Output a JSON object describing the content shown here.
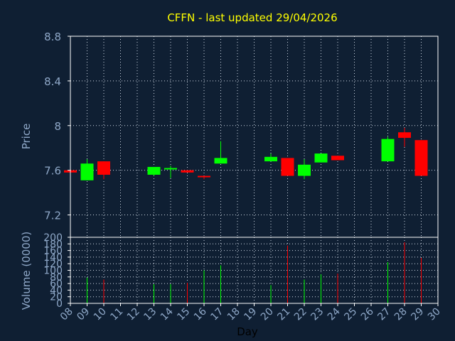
{
  "title": "CFFN - last updated 29/04/2026",
  "colors": {
    "background": "#0f1f33",
    "plot_bg": "#0f1f33",
    "frame": "#ffffff",
    "grid": "#cfd8e4",
    "title": "#ffff00",
    "axis_text": "#8fa8c8",
    "up": "#00ff00",
    "down": "#ff0000"
  },
  "chart_data": [
    {
      "type": "candlestick",
      "ylabel": "Price",
      "ylim": [
        7.0,
        8.8
      ],
      "yticks": [
        7.2,
        7.6,
        8,
        8.4,
        8.8
      ],
      "ytick_labels": [
        "7.2",
        "7.6",
        "8",
        "8.4",
        "8.8"
      ],
      "grid": true,
      "candles": [
        {
          "day": 8,
          "open": 7.6,
          "close": 7.58,
          "high": 7.6,
          "low": 7.58
        },
        {
          "day": 9,
          "open": 7.51,
          "close": 7.66,
          "high": 7.7,
          "low": 7.51
        },
        {
          "day": 10,
          "open": 7.68,
          "close": 7.56,
          "high": 7.68,
          "low": 7.52
        },
        {
          "day": 13,
          "open": 7.56,
          "close": 7.63,
          "high": 7.63,
          "low": 7.55
        },
        {
          "day": 14,
          "open": 7.61,
          "close": 7.62,
          "high": 7.64,
          "low": 7.53
        },
        {
          "day": 15,
          "open": 7.6,
          "close": 7.58,
          "high": 7.6,
          "low": 7.58
        },
        {
          "day": 16,
          "open": 7.55,
          "close": 7.54,
          "high": 7.55,
          "low": 7.52
        },
        {
          "day": 17,
          "open": 7.66,
          "close": 7.71,
          "high": 7.86,
          "low": 7.66
        },
        {
          "day": 20,
          "open": 7.68,
          "close": 7.72,
          "high": 7.75,
          "low": 7.68
        },
        {
          "day": 21,
          "open": 7.71,
          "close": 7.55,
          "high": 7.71,
          "low": 7.55
        },
        {
          "day": 22,
          "open": 7.55,
          "close": 7.65,
          "high": 7.7,
          "low": 7.52
        },
        {
          "day": 23,
          "open": 7.67,
          "close": 7.75,
          "high": 7.75,
          "low": 7.67
        },
        {
          "day": 24,
          "open": 7.73,
          "close": 7.69,
          "high": 7.73,
          "low": 7.69
        },
        {
          "day": 27,
          "open": 7.68,
          "close": 7.88,
          "high": 7.9,
          "low": 7.68
        },
        {
          "day": 28,
          "open": 7.94,
          "close": 7.89,
          "high": 7.98,
          "low": 7.81
        },
        {
          "day": 29,
          "open": 7.87,
          "close": 7.55,
          "high": 7.87,
          "low": 7.55
        }
      ]
    },
    {
      "type": "bar",
      "ylabel": "Volume (0000)",
      "xlabel": "Day",
      "ylim": [
        0,
        200
      ],
      "yticks": [
        0,
        20,
        40,
        60,
        80,
        100,
        120,
        140,
        160,
        180,
        200
      ],
      "ytick_labels": [
        "0",
        "20",
        "40",
        "60",
        "80",
        "100",
        "120",
        "140",
        "160",
        "180",
        "200"
      ],
      "xlim": [
        8,
        30
      ],
      "xticks": [
        "08",
        "09",
        "10",
        "11",
        "12",
        "13",
        "14",
        "15",
        "16",
        "17",
        "18",
        "19",
        "20",
        "21",
        "22",
        "23",
        "24",
        "25",
        "26",
        "27",
        "28",
        "29",
        "30"
      ],
      "bars": [
        {
          "day": 9,
          "value": 78,
          "color": "up"
        },
        {
          "day": 10,
          "value": 72,
          "color": "down"
        },
        {
          "day": 13,
          "value": 58,
          "color": "up"
        },
        {
          "day": 14,
          "value": 58,
          "color": "up"
        },
        {
          "day": 15,
          "value": 62,
          "color": "down"
        },
        {
          "day": 16,
          "value": 100,
          "color": "up"
        },
        {
          "day": 17,
          "value": 115,
          "color": "up"
        },
        {
          "day": 20,
          "value": 55,
          "color": "up"
        },
        {
          "day": 21,
          "value": 175,
          "color": "down"
        },
        {
          "day": 22,
          "value": 72,
          "color": "up"
        },
        {
          "day": 23,
          "value": 88,
          "color": "up"
        },
        {
          "day": 24,
          "value": 90,
          "color": "down"
        },
        {
          "day": 27,
          "value": 125,
          "color": "up"
        },
        {
          "day": 28,
          "value": 185,
          "color": "down"
        },
        {
          "day": 29,
          "value": 138,
          "color": "down"
        }
      ]
    }
  ]
}
